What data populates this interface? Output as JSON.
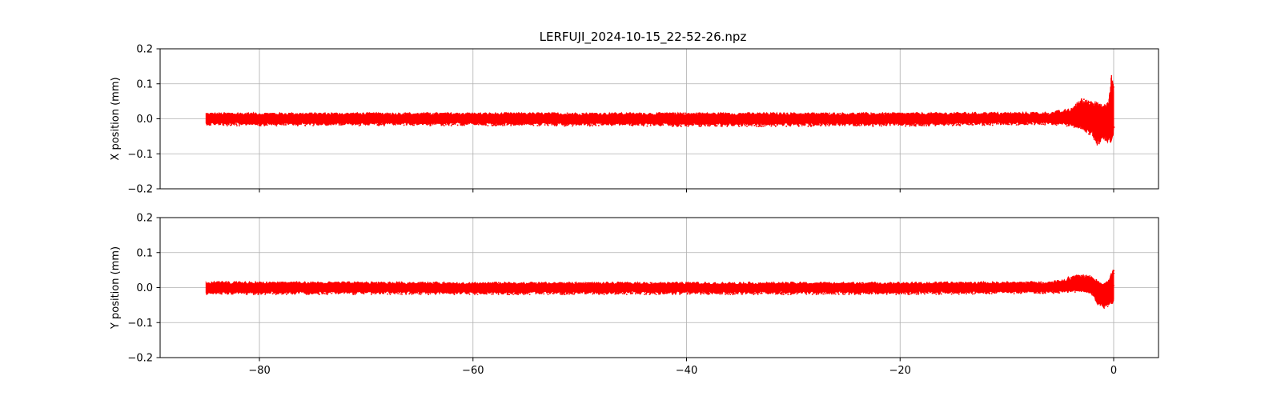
{
  "figure": {
    "title": "LERFUJI_2024-10-15_22-52-26.npz"
  },
  "chart_data": [
    {
      "type": "scatter",
      "title": "LERFUJI_2024-10-15_22-52-26.npz",
      "xlabel": "",
      "ylabel": "X position (mm)",
      "xlim": [
        -89.3,
        4.2
      ],
      "ylim": [
        -0.2,
        0.2
      ],
      "xticks": [
        -80,
        -60,
        -40,
        -20,
        0
      ],
      "xtick_labels": [
        "",
        "",
        "",
        "",
        ""
      ],
      "yticks": [
        -0.2,
        -0.1,
        0.0,
        0.1,
        0.2
      ],
      "ytick_labels": [
        "−0.2",
        "−0.1",
        "0.0",
        "0.1",
        "0.2"
      ],
      "grid": true,
      "series": [
        {
          "color": "#ff0000",
          "x_start": -85.0,
          "x_end": 0.0,
          "description_points": [
            {
              "x": -85.0,
              "y_low": -0.018,
              "y_high": 0.018
            },
            {
              "x": -60.0,
              "y_low": -0.018,
              "y_high": 0.018
            },
            {
              "x": -40.0,
              "y_low": -0.02,
              "y_high": 0.018
            },
            {
              "x": -20.0,
              "y_low": -0.02,
              "y_high": 0.018
            },
            {
              "x": -6.0,
              "y_low": -0.015,
              "y_high": 0.02
            },
            {
              "x": -4.0,
              "y_low": -0.02,
              "y_high": 0.03
            },
            {
              "x": -3.0,
              "y_low": -0.03,
              "y_high": 0.06
            },
            {
              "x": -2.0,
              "y_low": -0.05,
              "y_high": 0.05
            },
            {
              "x": -1.5,
              "y_low": -0.08,
              "y_high": 0.05
            },
            {
              "x": -1.0,
              "y_low": -0.06,
              "y_high": 0.04
            },
            {
              "x": -0.5,
              "y_low": -0.07,
              "y_high": 0.05
            },
            {
              "x": -0.2,
              "y_low": -0.07,
              "y_high": 0.13
            },
            {
              "x": 0.0,
              "y_low": -0.04,
              "y_high": 0.09
            }
          ]
        }
      ]
    },
    {
      "type": "scatter",
      "title": "",
      "xlabel": "",
      "ylabel": "Y position (mm)",
      "xlim": [
        -89.3,
        4.2
      ],
      "ylim": [
        -0.2,
        0.2
      ],
      "xticks": [
        -80,
        -60,
        -40,
        -20,
        0
      ],
      "xtick_labels": [
        "−80",
        "−60",
        "−40",
        "−20",
        "0"
      ],
      "yticks": [
        -0.2,
        -0.1,
        0.0,
        0.1,
        0.2
      ],
      "ytick_labels": [
        "−0.2",
        "−0.1",
        "0.0",
        "0.1",
        "0.2"
      ],
      "grid": true,
      "series": [
        {
          "color": "#ff0000",
          "x_start": -85.0,
          "x_end": 0.0,
          "description_points": [
            {
              "x": -85.0,
              "y_low": -0.018,
              "y_high": 0.018
            },
            {
              "x": -60.0,
              "y_low": -0.018,
              "y_high": 0.016
            },
            {
              "x": -40.0,
              "y_low": -0.018,
              "y_high": 0.016
            },
            {
              "x": -20.0,
              "y_low": -0.018,
              "y_high": 0.016
            },
            {
              "x": -6.0,
              "y_low": -0.015,
              "y_high": 0.018
            },
            {
              "x": -3.0,
              "y_low": -0.01,
              "y_high": 0.04
            },
            {
              "x": -2.0,
              "y_low": -0.02,
              "y_high": 0.035
            },
            {
              "x": -1.5,
              "y_low": -0.05,
              "y_high": 0.02
            },
            {
              "x": -1.0,
              "y_low": -0.06,
              "y_high": 0.01
            },
            {
              "x": -0.5,
              "y_low": -0.05,
              "y_high": 0.02
            },
            {
              "x": 0.0,
              "y_low": -0.045,
              "y_high": 0.06
            }
          ]
        }
      ]
    }
  ]
}
